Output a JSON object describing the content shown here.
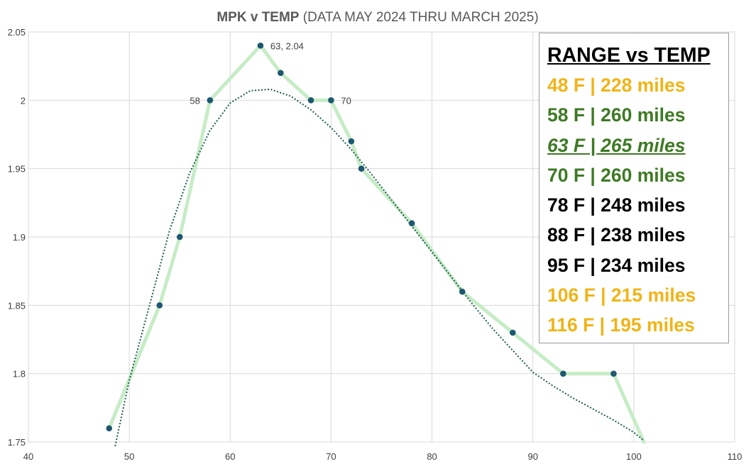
{
  "chart_data": {
    "type": "scatter",
    "title_bold": "MPK v TEMP",
    "title_rest": " (DATA MAY 2024 THRU MARCH 2025)",
    "xlabel": "",
    "ylabel": "",
    "xlim": [
      40,
      110
    ],
    "ylim": [
      1.75,
      2.05
    ],
    "xticks": [
      "40",
      "50",
      "60",
      "70",
      "80",
      "90",
      "100",
      "110"
    ],
    "yticks": [
      "1.75",
      "1.8",
      "1.85",
      "1.9",
      "1.95",
      "2",
      "2.05"
    ],
    "grid": true,
    "series": [
      {
        "line_color": "#c6ecc6",
        "marker_color": "#1d5870",
        "x": [
          48,
          53,
          55,
          58,
          63,
          65,
          68,
          70,
          72,
          73,
          78,
          83,
          88,
          93,
          98,
          101
        ],
        "y": [
          1.76,
          1.85,
          1.9,
          2.0,
          2.04,
          2.02,
          2.0,
          2.0,
          1.97,
          1.95,
          1.91,
          1.86,
          1.83,
          1.8,
          1.8,
          1.75
        ],
        "markers_shown": [
          true,
          true,
          true,
          true,
          true,
          true,
          true,
          true,
          true,
          true,
          true,
          true,
          true,
          true,
          true,
          false
        ]
      }
    ],
    "trendline": {
      "style": "dotted",
      "color": "#1e5a52",
      "x": [
        48.6,
        50,
        52,
        54,
        56,
        58,
        60,
        62,
        64,
        66,
        68,
        70,
        72,
        74,
        76,
        78,
        80,
        82,
        84,
        86,
        88,
        90,
        92,
        94,
        96,
        98,
        100,
        101
      ],
      "y": [
        1.747,
        1.795,
        1.85,
        1.905,
        1.947,
        1.978,
        1.998,
        2.007,
        2.008,
        2.003,
        1.993,
        1.98,
        1.964,
        1.946,
        1.927,
        1.908,
        1.889,
        1.87,
        1.851,
        1.833,
        1.817,
        1.801,
        1.791,
        1.782,
        1.774,
        1.766,
        1.757,
        1.751
      ]
    },
    "annotations": [
      {
        "text": "63, 2.04",
        "x": 63,
        "y": 2.04,
        "side": "right"
      },
      {
        "text": "58",
        "x": 58,
        "y": 2.0,
        "side": "left"
      },
      {
        "text": "70",
        "x": 70,
        "y": 2.0,
        "side": "right"
      }
    ]
  },
  "range_panel": {
    "title": "RANGE vs TEMP",
    "rows": [
      {
        "text": "48 F | 228 miles",
        "color": "#f0b417",
        "emphasis": false
      },
      {
        "text": "58 F | 260 miles",
        "color": "#3e7a24",
        "emphasis": false
      },
      {
        "text": "63 F | 265 miles",
        "color": "#3e7a24",
        "emphasis": true
      },
      {
        "text": "70 F | 260 miles",
        "color": "#3e7a24",
        "emphasis": false
      },
      {
        "text": "78 F | 248 miles",
        "color": "#000000",
        "emphasis": false
      },
      {
        "text": "88 F | 238 miles",
        "color": "#000000",
        "emphasis": false
      },
      {
        "text": "95 F | 234 miles",
        "color": "#000000",
        "emphasis": false
      },
      {
        "text": "106 F | 215 miles",
        "color": "#f0b417",
        "emphasis": false
      },
      {
        "text": "116 F | 195 miles",
        "color": "#f0b417",
        "emphasis": false
      }
    ]
  }
}
